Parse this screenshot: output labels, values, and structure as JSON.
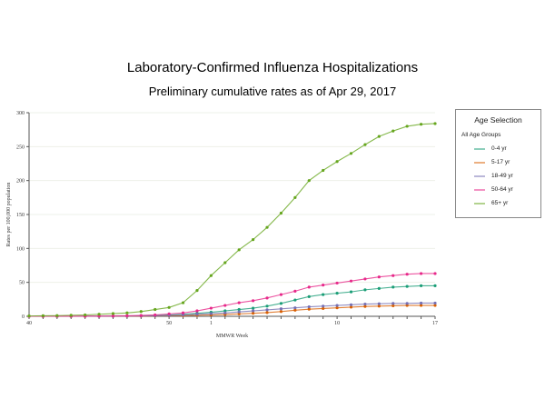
{
  "title": "Laboratory-Confirmed Influenza Hospitalizations",
  "subtitle": "Preliminary cumulative rates as of Apr 29, 2017",
  "legend": {
    "title": "Age Selection",
    "all_label": "All Age Groups"
  },
  "chart_data": {
    "type": "line",
    "xlabel": "MMWR Week",
    "ylabel": "Rates per 100,000 population",
    "ylim": [
      0,
      300
    ],
    "yticks": [
      0,
      50,
      100,
      150,
      200,
      250,
      300
    ],
    "x": [
      40,
      41,
      42,
      43,
      44,
      45,
      46,
      47,
      48,
      49,
      50,
      51,
      52,
      1,
      2,
      3,
      4,
      5,
      6,
      7,
      8,
      9,
      10,
      11,
      12,
      13,
      14,
      15,
      16,
      17
    ],
    "xtick_labels": [
      "40",
      "50",
      "1",
      "10",
      "17"
    ],
    "grid": true,
    "series": [
      {
        "name": "0-4 yr",
        "color": "#1b9e77",
        "values": [
          0,
          0,
          0,
          0,
          0.1,
          0.2,
          0.3,
          0.5,
          0.8,
          1.2,
          2,
          3,
          4.5,
          6,
          8,
          10,
          12,
          15,
          19,
          24,
          29,
          32,
          34,
          36,
          39,
          41,
          43,
          44,
          45,
          45
        ]
      },
      {
        "name": "5-17 yr",
        "color": "#d95f02",
        "values": [
          0,
          0,
          0,
          0,
          0,
          0.1,
          0.1,
          0.2,
          0.3,
          0.5,
          0.7,
          1,
          1.5,
          2,
          2.8,
          3.5,
          4.5,
          5.5,
          7,
          9,
          10.5,
          11.5,
          12.5,
          13.5,
          14.5,
          15,
          15.5,
          16,
          16,
          16
        ]
      },
      {
        "name": "18-49 yr",
        "color": "#7570b3",
        "values": [
          0,
          0,
          0,
          0,
          0.1,
          0.1,
          0.2,
          0.3,
          0.5,
          0.8,
          1.2,
          2,
          3,
          4,
          5,
          6.5,
          8,
          9.5,
          11,
          12.5,
          14,
          15,
          16,
          17,
          18,
          18.5,
          19,
          19,
          19.5,
          19.5
        ]
      },
      {
        "name": "50-64 yr",
        "color": "#e7298a",
        "values": [
          0,
          0,
          0.1,
          0.1,
          0.2,
          0.3,
          0.5,
          0.8,
          1.2,
          2,
          3.5,
          5,
          8,
          12,
          16,
          20,
          23,
          27,
          32,
          37,
          43,
          46,
          49,
          52,
          55,
          58,
          60,
          62,
          63,
          63
        ]
      },
      {
        "name": "65+ yr",
        "color": "#66a61e",
        "values": [
          0.5,
          0.8,
          1,
          1.5,
          2,
          3,
          4,
          5,
          7,
          10,
          13,
          20,
          38,
          60,
          79,
          98,
          113,
          131,
          152,
          175,
          200,
          215,
          228,
          240,
          253,
          265,
          273,
          280,
          283,
          284
        ]
      }
    ]
  }
}
